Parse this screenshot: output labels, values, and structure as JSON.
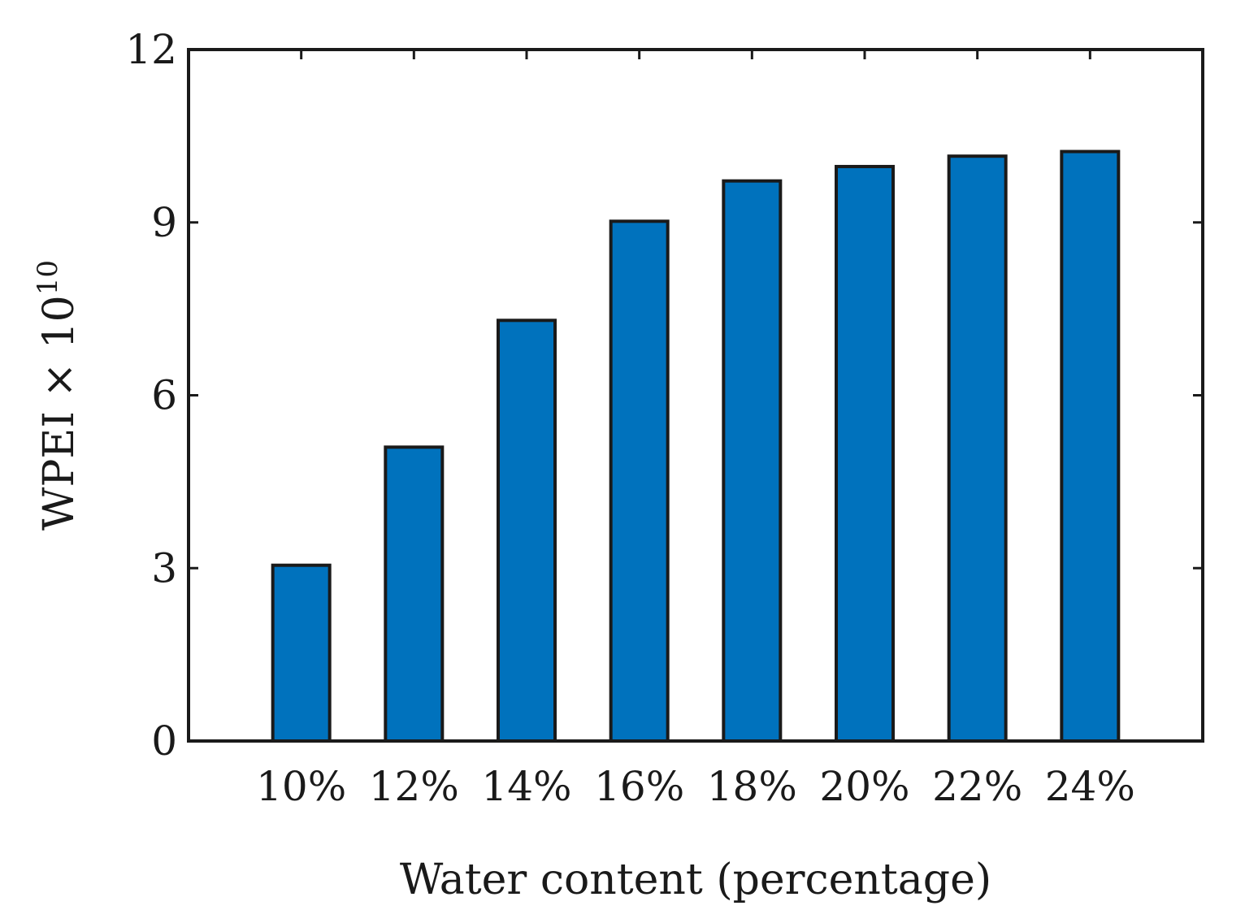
{
  "chart_data": {
    "type": "bar",
    "title": "",
    "xlabel": "Water content (percentage)",
    "ylabel_base": "WPEI × 10",
    "ylabel_exponent": "10",
    "categories": [
      "10%",
      "12%",
      "14%",
      "16%",
      "18%",
      "20%",
      "22%",
      "24%"
    ],
    "values": [
      3.05,
      5.1,
      7.3,
      9.02,
      9.72,
      9.97,
      10.15,
      10.23
    ],
    "ylim": [
      0,
      12
    ],
    "yticks": [
      0,
      3,
      6,
      9,
      12
    ],
    "ytick_labels": [
      "0",
      "3",
      "6",
      "9",
      "12"
    ],
    "xlim": [
      0,
      9
    ],
    "grid": false,
    "bar_color": "#0072BD",
    "edge_color": "#1a1a1a"
  }
}
